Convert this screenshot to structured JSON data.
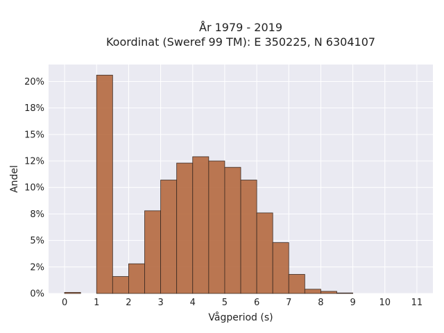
{
  "chart_data": {
    "type": "bar",
    "title": "År 1979 - 2019",
    "subtitle": "Koordinat (Sweref 99 TM): E 350225, N 6304107",
    "xlabel": "Vågperiod (s)",
    "ylabel": "Andel",
    "bin_width": 0.5,
    "bins": [
      {
        "x0": 0.0,
        "value": 0.1
      },
      {
        "x0": 0.5,
        "value": 0.0
      },
      {
        "x0": 1.0,
        "value": 20.6
      },
      {
        "x0": 1.5,
        "value": 1.6
      },
      {
        "x0": 2.0,
        "value": 2.8
      },
      {
        "x0": 2.5,
        "value": 7.8
      },
      {
        "x0": 3.0,
        "value": 10.7
      },
      {
        "x0": 3.5,
        "value": 12.3
      },
      {
        "x0": 4.0,
        "value": 12.9
      },
      {
        "x0": 4.5,
        "value": 12.5
      },
      {
        "x0": 5.0,
        "value": 11.9
      },
      {
        "x0": 5.5,
        "value": 10.7
      },
      {
        "x0": 6.0,
        "value": 7.6
      },
      {
        "x0": 6.5,
        "value": 4.8
      },
      {
        "x0": 7.0,
        "value": 1.8
      },
      {
        "x0": 7.5,
        "value": 0.4
      },
      {
        "x0": 8.0,
        "value": 0.2
      },
      {
        "x0": 8.5,
        "value": 0.05
      }
    ],
    "xticks": [
      "0",
      "1",
      "2",
      "3",
      "4",
      "5",
      "6",
      "7",
      "8",
      "9",
      "10",
      "11"
    ],
    "xtick_values": [
      0,
      1,
      2,
      3,
      4,
      5,
      6,
      7,
      8,
      9,
      10,
      11
    ],
    "yticks": [
      "0%",
      "2%",
      "5%",
      "8%",
      "10%",
      "12%",
      "15%",
      "18%",
      "20%"
    ],
    "ytick_values": [
      0,
      2.5,
      5,
      7.5,
      10,
      12.5,
      15,
      17.5,
      20
    ],
    "xlim": [
      -0.5,
      11.5
    ],
    "ylim": [
      0,
      21.6
    ],
    "grid": true,
    "colors": {
      "bar_fill": "#b5693f",
      "bar_stroke": "#3a2a22",
      "plot_background": "#eaeaf2",
      "grid": "#ffffff"
    }
  }
}
